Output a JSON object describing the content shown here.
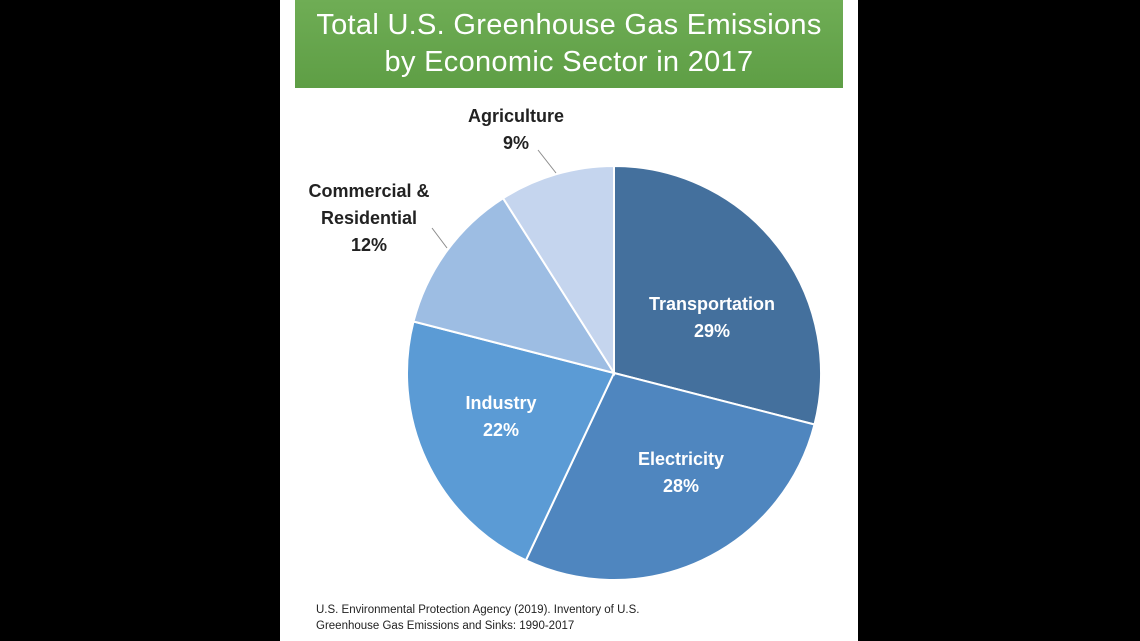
{
  "chart_data": {
    "type": "pie",
    "title": [
      "Total U.S. Greenhouse Gas Emissions",
      "by Economic Sector in 2017"
    ],
    "slices": [
      {
        "name": "Transportation",
        "name_lines": [
          "Transportation"
        ],
        "value": 29,
        "value_label": "29%",
        "color": "#44709d",
        "label_color": "#ffffff"
      },
      {
        "name": "Electricity",
        "name_lines": [
          "Electricity"
        ],
        "value": 28,
        "value_label": "28%",
        "color": "#4f86bf",
        "label_color": "#ffffff"
      },
      {
        "name": "Industry",
        "name_lines": [
          "Industry"
        ],
        "value": 22,
        "value_label": "22%",
        "color": "#5b9bd5",
        "label_color": "#ffffff"
      },
      {
        "name": "Commercial & Residential",
        "name_lines": [
          "Commercial &",
          "Residential"
        ],
        "value": 12,
        "value_label": "12%",
        "color": "#9dbde3",
        "label_color": "#222222"
      },
      {
        "name": "Agriculture",
        "name_lines": [
          "Agriculture"
        ],
        "value": 9,
        "value_label": "9%",
        "color": "#c5d5ee",
        "label_color": "#222222"
      }
    ],
    "source": [
      "U.S. Environmental Protection Agency (2019). Inventory of U.S.",
      "Greenhouse Gas Emissions and Sinks: 1990-2017"
    ]
  }
}
